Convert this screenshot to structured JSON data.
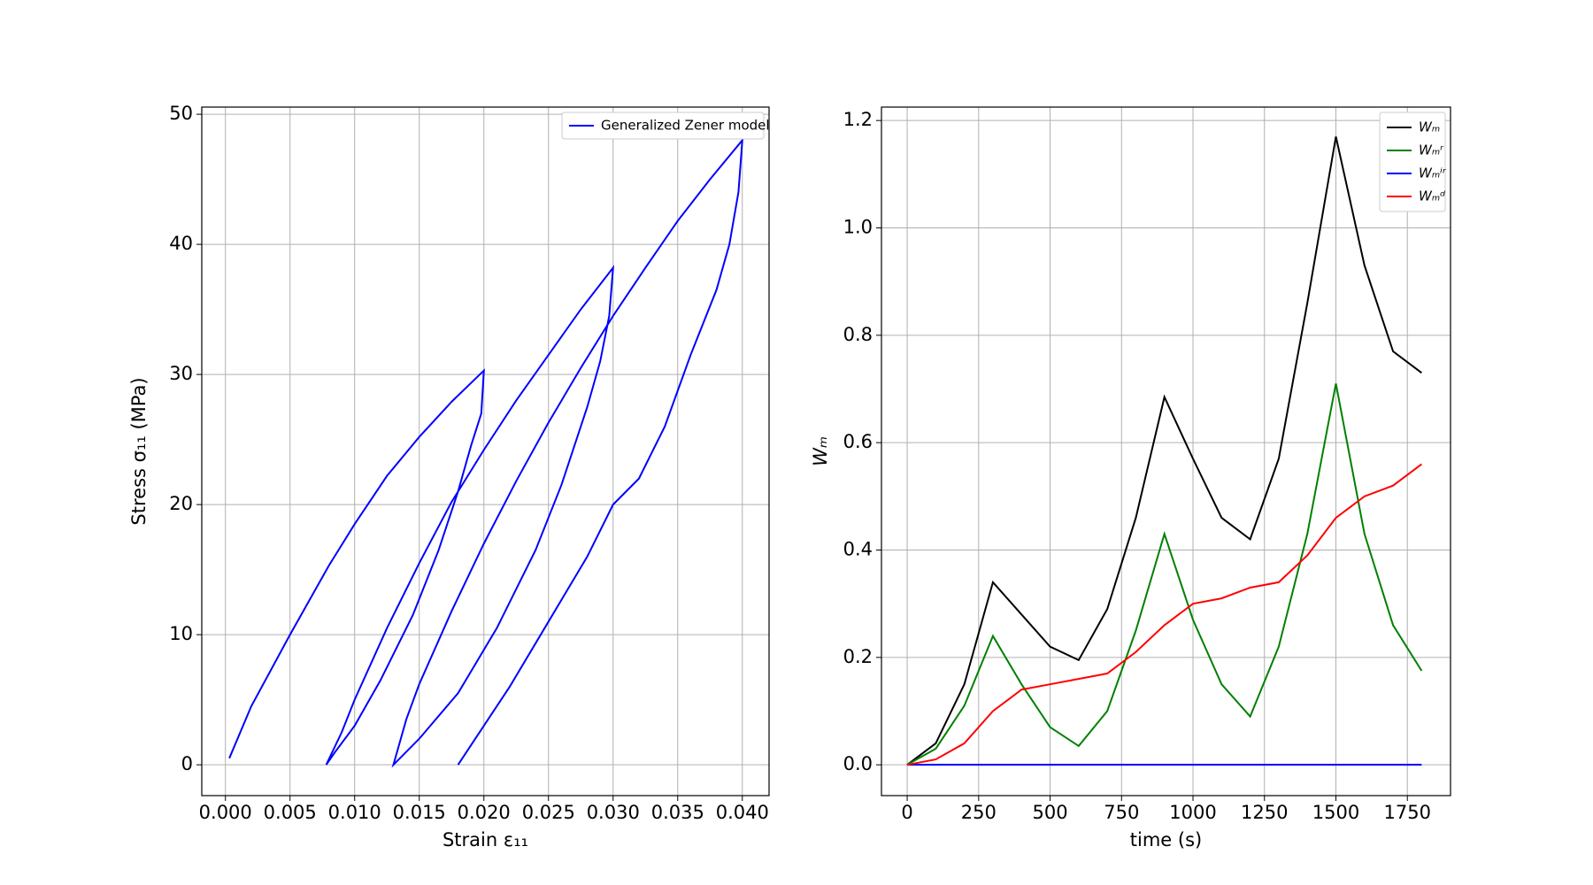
{
  "chart_data": [
    {
      "type": "line",
      "xlabel": "Strain ε₁₁",
      "ylabel": "Stress σ₁₁ (MPa)",
      "legend": "upper right",
      "grid": true,
      "xlim": [
        -0.00183,
        0.04207
      ],
      "ylim": [
        -2.37,
        50.55
      ],
      "xticks": [
        {
          "value": 0,
          "label": "0.000"
        },
        {
          "value": 0.005,
          "label": "0.005"
        },
        {
          "value": 0.01,
          "label": "0.010"
        },
        {
          "value": 0.015,
          "label": "0.015"
        },
        {
          "value": 0.02,
          "label": "0.020"
        },
        {
          "value": 0.025,
          "label": "0.025"
        },
        {
          "value": 0.03,
          "label": "0.030"
        },
        {
          "value": 0.035,
          "label": "0.035"
        },
        {
          "value": 0.04,
          "label": "0.040"
        }
      ],
      "yticks": [
        0,
        10,
        20,
        30,
        40,
        50
      ],
      "x": [
        0.0003,
        0.002,
        0.005,
        0.008,
        0.01,
        0.0125,
        0.015,
        0.0175,
        0.02,
        0.0198,
        0.019,
        0.018,
        0.0165,
        0.0145,
        0.012,
        0.01,
        0.0085,
        0.0078,
        0.009,
        0.01,
        0.0125,
        0.015,
        0.0175,
        0.02,
        0.0225,
        0.025,
        0.0275,
        0.03,
        0.0297,
        0.029,
        0.028,
        0.026,
        0.024,
        0.021,
        0.018,
        0.015,
        0.013,
        0.014,
        0.015,
        0.0175,
        0.02,
        0.0225,
        0.025,
        0.0275,
        0.03,
        0.0325,
        0.035,
        0.0375,
        0.04,
        0.0397,
        0.039,
        0.038,
        0.036,
        0.034,
        0.032,
        0.03,
        0.028,
        0.025,
        0.022,
        0.02,
        0.018
      ],
      "series": [
        {
          "name": "Generalized Zener model",
          "color": "#0000ff",
          "values": [
            0.5,
            4.5,
            10,
            15.3,
            18.5,
            22.2,
            25.2,
            27.9,
            30.3,
            27,
            24.5,
            21,
            16.5,
            11.5,
            6.5,
            3,
            1,
            0,
            2.5,
            5,
            10.5,
            15.5,
            20.2,
            24.2,
            28,
            31.5,
            35,
            38.2,
            34.5,
            31,
            27.5,
            21.5,
            16.5,
            10.5,
            5.5,
            2,
            0,
            3.5,
            6.2,
            11.8,
            17,
            21.8,
            26.3,
            30.5,
            34.5,
            38.2,
            41.8,
            45,
            48,
            44,
            40,
            36.5,
            31.5,
            26,
            22,
            20,
            16,
            11,
            6,
            3,
            0
          ]
        }
      ]
    },
    {
      "type": "line",
      "xlabel": "time (s)",
      "ylabel": "Wₘ",
      "legend": "upper right",
      "grid": true,
      "xlim": [
        -90,
        1901
      ],
      "ylim": [
        -0.0574,
        1.225
      ],
      "xticks": [
        0,
        250,
        500,
        750,
        1000,
        1250,
        1500,
        1750
      ],
      "yticks": [
        {
          "value": 0,
          "label": "0.0"
        },
        0.2,
        0.4,
        0.6,
        0.8,
        {
          "value": 1,
          "label": "1.0"
        },
        1.2
      ],
      "x": [
        0,
        100,
        200,
        300,
        400,
        500,
        600,
        700,
        800,
        900,
        1000,
        1100,
        1200,
        1300,
        1400,
        1500,
        1600,
        1700,
        1800
      ],
      "series": [
        {
          "name": "Wₘ",
          "color": "#000000",
          "values": [
            0,
            0.04,
            0.15,
            0.34,
            0.28,
            0.22,
            0.195,
            0.29,
            0.46,
            0.685,
            0.57,
            0.46,
            0.42,
            0.57,
            0.86,
            1.17,
            0.93,
            0.77,
            0.73
          ]
        },
        {
          "name": "Wₘʳ",
          "color": "#008000",
          "values": [
            0,
            0.03,
            0.11,
            0.24,
            0.15,
            0.07,
            0.035,
            0.1,
            0.25,
            0.43,
            0.27,
            0.15,
            0.09,
            0.22,
            0.43,
            0.71,
            0.43,
            0.26,
            0.175
          ]
        },
        {
          "name": "Wₘⁱʳ",
          "color": "#0000ff",
          "values": [
            0,
            0,
            0,
            0,
            0,
            0,
            0,
            0,
            0,
            0,
            0,
            0,
            0,
            0,
            0,
            0,
            0,
            0,
            0
          ]
        },
        {
          "name": "Wₘᵈ",
          "color": "#ff0000",
          "values": [
            0,
            0.01,
            0.04,
            0.1,
            0.14,
            0.15,
            0.16,
            0.17,
            0.21,
            0.26,
            0.3,
            0.31,
            0.33,
            0.34,
            0.39,
            0.46,
            0.5,
            0.52,
            0.56
          ]
        }
      ]
    }
  ]
}
